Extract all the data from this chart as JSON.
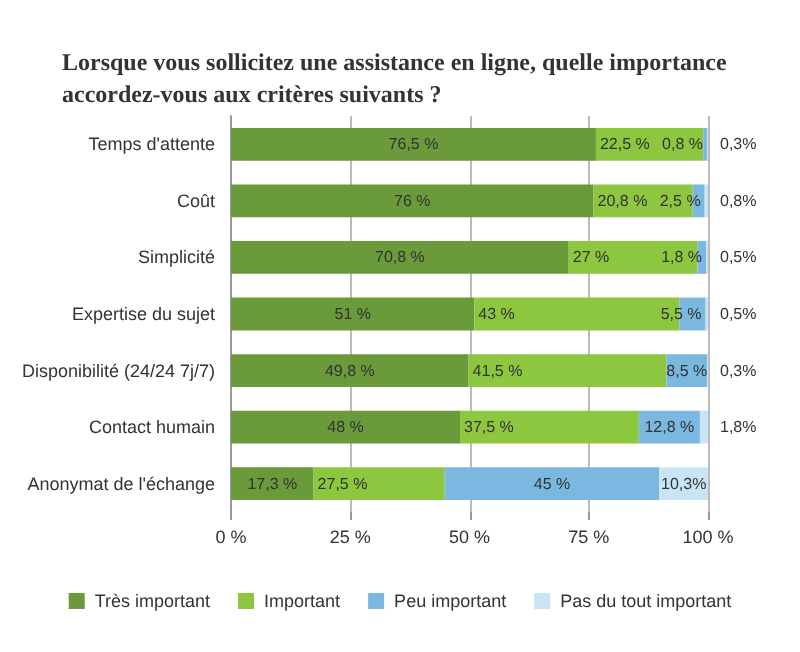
{
  "chart_data": {
    "type": "bar",
    "orientation": "horizontal",
    "stacked": true,
    "title": "Lorsque vous sollicitez une assistance en ligne, quelle importance accordez-vous aux critères suivants ?",
    "categories": [
      "Temps d'attente",
      "Coût",
      "Simplicité",
      "Expertise du sujet",
      "Disponibilité (24/24 7j/7)",
      "Contact humain",
      "Anonymat de l'échange"
    ],
    "series": [
      {
        "name": "Très important",
        "color": "#6a9a3a",
        "values": [
          76.5,
          76,
          70.8,
          51,
          49.8,
          48,
          17.3
        ],
        "value_labels": [
          "76,5 %",
          "76 %",
          "70,8 %",
          "51 %",
          "49,8 %",
          "48 %",
          "17,3 %"
        ]
      },
      {
        "name": "Important",
        "color": "#8dc63f",
        "values": [
          22.5,
          20.8,
          27,
          43,
          41.5,
          37.5,
          27.5
        ],
        "value_labels": [
          "22,5 %",
          "20,8 %",
          "27 %",
          "43 %",
          "41,5 %",
          "37,5 %",
          "27,5 %"
        ]
      },
      {
        "name": "Peu important",
        "color": "#7ab8e0",
        "values": [
          0.8,
          2.5,
          1.8,
          5.5,
          8.5,
          12.8,
          45
        ],
        "value_labels": [
          "0,8 %",
          "2,5 %",
          "1,8 %",
          "5,5 %",
          "8,5 %",
          "12,8 %",
          "45 %"
        ]
      },
      {
        "name": "Pas du tout important",
        "color": "#c8e4f5",
        "values": [
          0.3,
          0.8,
          0.5,
          0.5,
          0.3,
          1.8,
          10.3
        ],
        "value_labels": [
          "0,3%",
          "0,8%",
          "0,5%",
          "0,5%",
          "0,3%",
          "1,8%",
          "10,3%"
        ]
      }
    ],
    "xlim": [
      0,
      100
    ],
    "xticks": [
      {
        "value": 0,
        "label": "0 %"
      },
      {
        "value": 25,
        "label": "25 %"
      },
      {
        "value": 50,
        "label": "50 %"
      },
      {
        "value": 75,
        "label": "75 %"
      },
      {
        "value": 100,
        "label": "100 %"
      }
    ],
    "grid": "x",
    "legend": "bottom"
  }
}
